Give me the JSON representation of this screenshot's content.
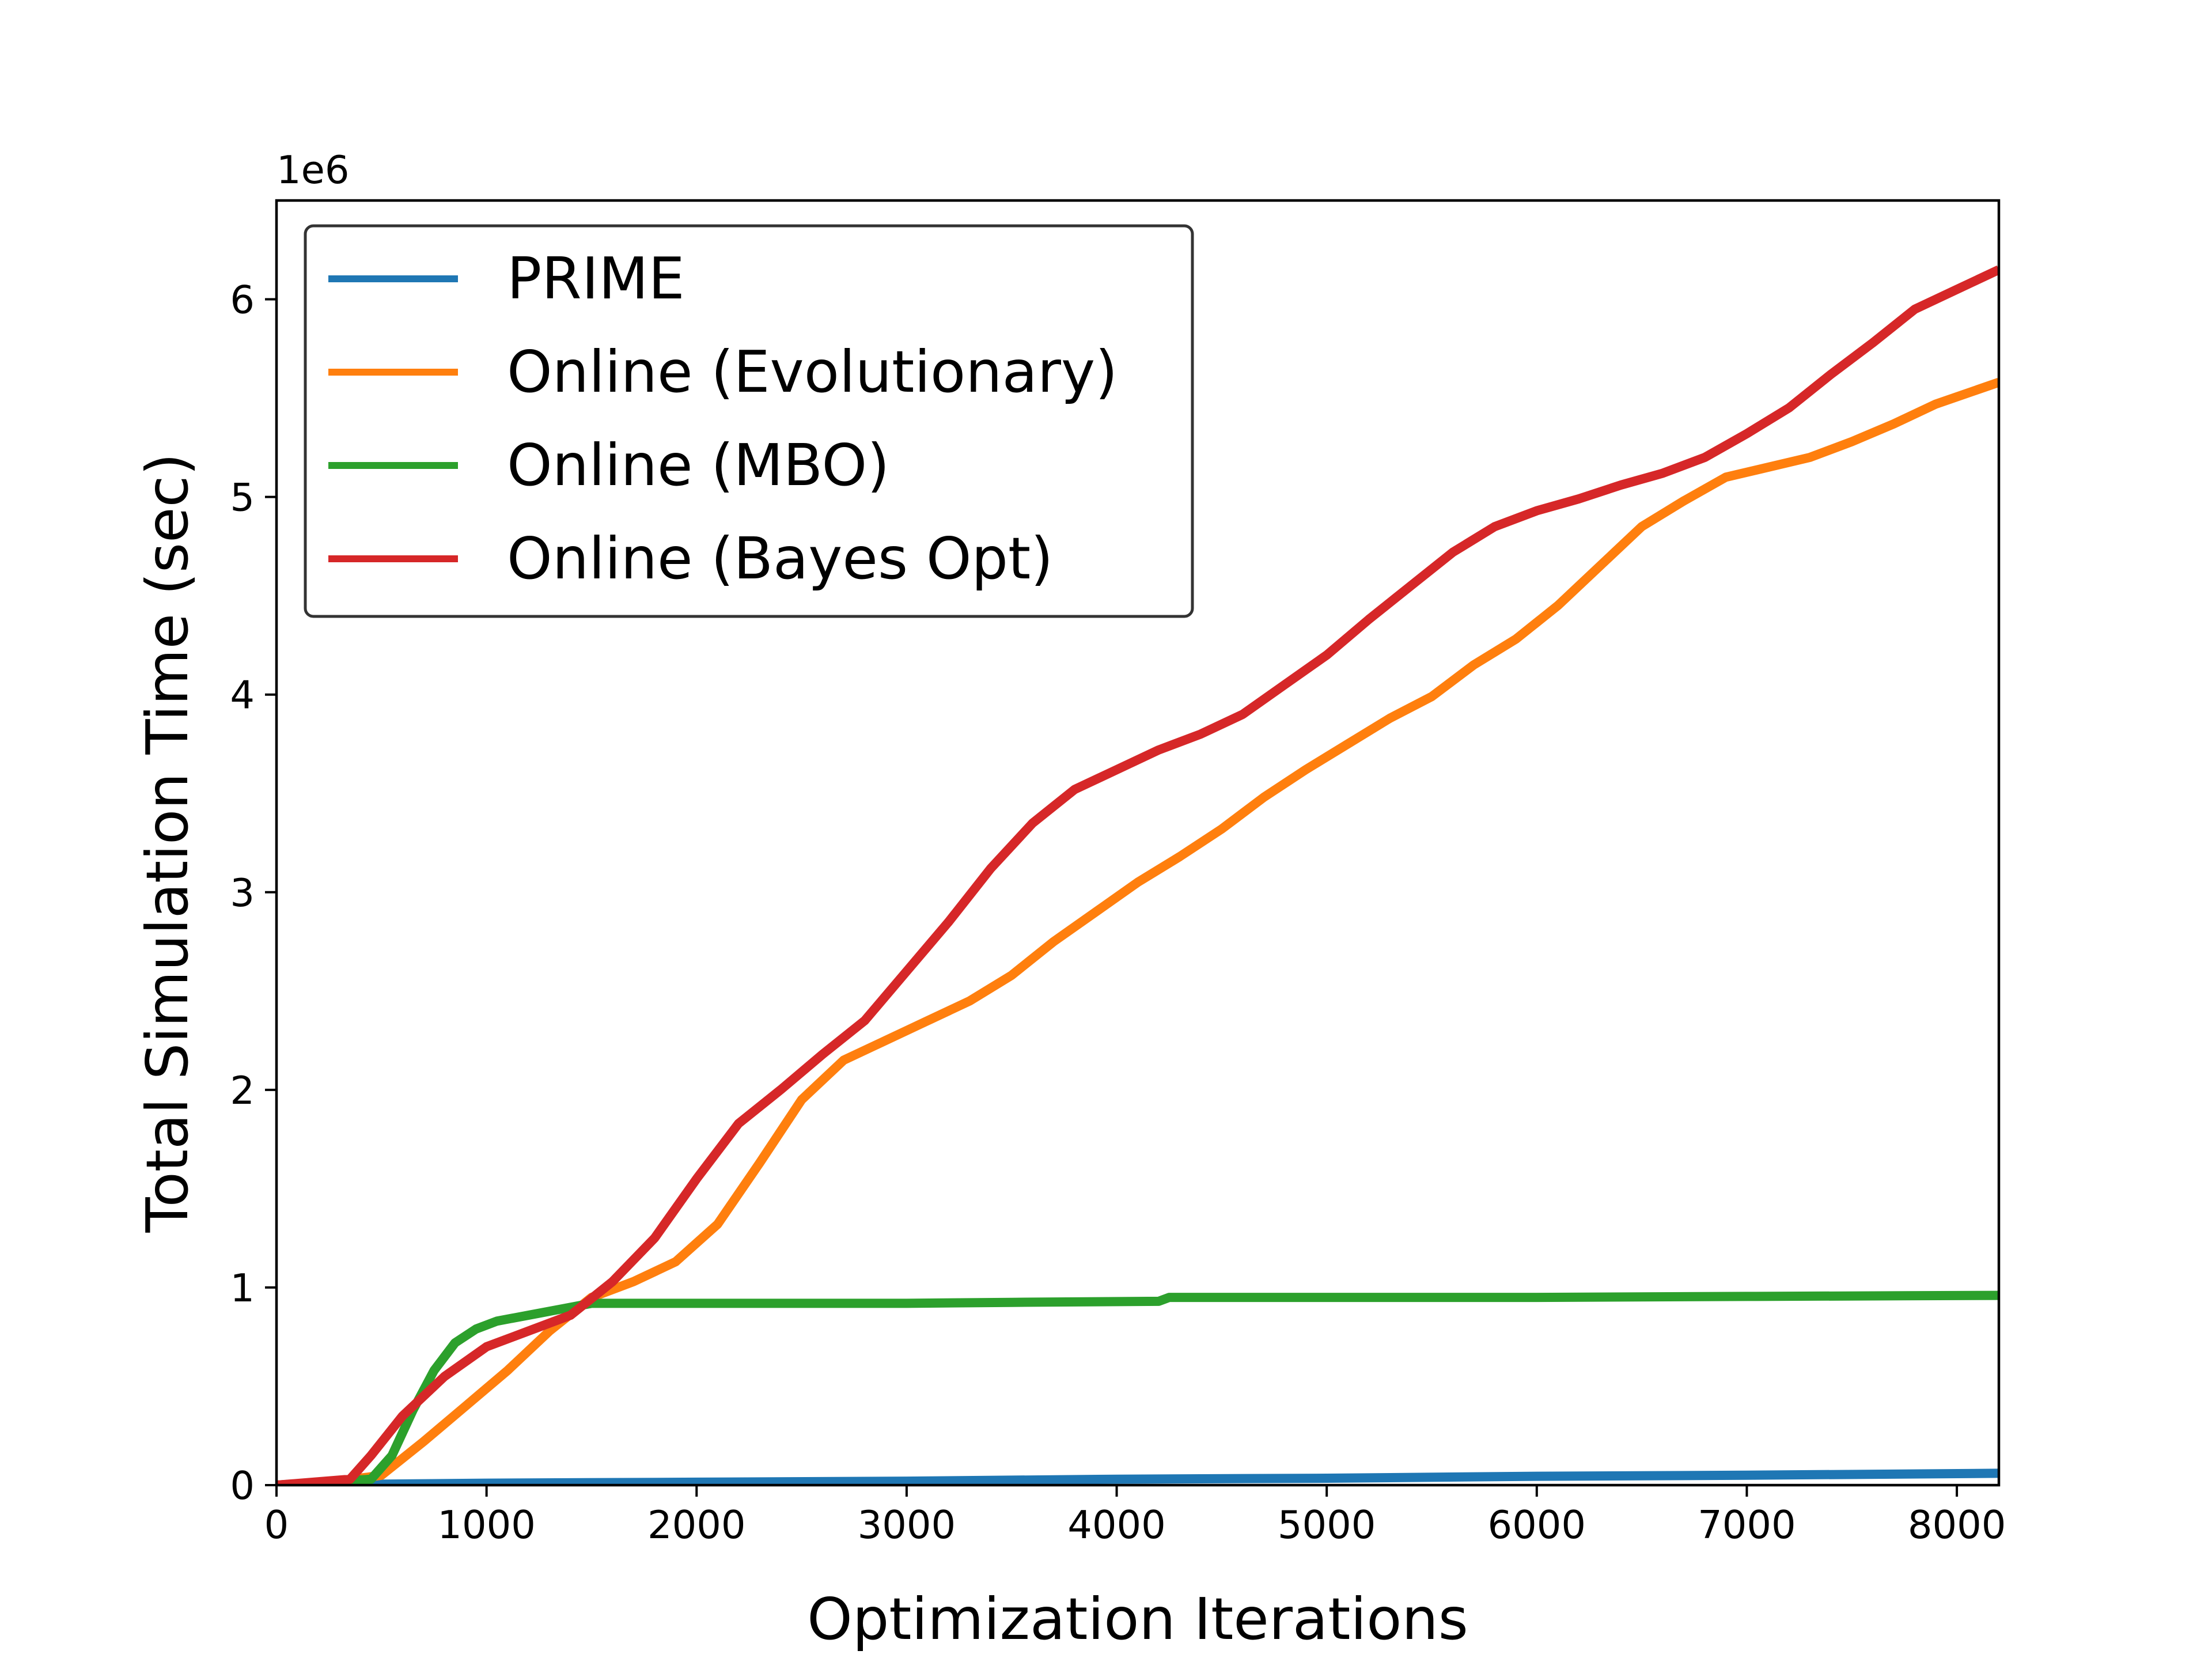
{
  "chart_data": {
    "type": "line",
    "xlabel": "Optimization Iterations",
    "ylabel": "Total Simulation Time (sec)",
    "y_offset_label": "1e6",
    "xlim": [
      0,
      8200
    ],
    "ylim": [
      0,
      6.5
    ],
    "y_multiplier": 1000000,
    "x_ticks": [
      0,
      1000,
      2000,
      3000,
      4000,
      5000,
      6000,
      7000,
      8000
    ],
    "y_ticks": [
      0,
      1,
      2,
      3,
      4,
      5,
      6
    ],
    "grid": false,
    "legend_position": "upper-left",
    "series": [
      {
        "name": "PRIME",
        "color": "#1f77b4",
        "x": [
          0,
          1000,
          2000,
          3000,
          4000,
          5000,
          6000,
          7000,
          8200
        ],
        "y": [
          0.0,
          0.01,
          0.015,
          0.02,
          0.03,
          0.035,
          0.045,
          0.05,
          0.06
        ]
      },
      {
        "name": "Online (Evolutionary)",
        "color": "#ff7f0e",
        "x": [
          0,
          300,
          500,
          700,
          900,
          1100,
          1300,
          1500,
          1700,
          1900,
          2100,
          2300,
          2500,
          2700,
          2900,
          3100,
          3300,
          3500,
          3700,
          3900,
          4100,
          4300,
          4500,
          4700,
          4900,
          5100,
          5300,
          5500,
          5700,
          5900,
          6100,
          6300,
          6500,
          6700,
          6900,
          7100,
          7300,
          7500,
          7700,
          7900,
          8200
        ],
        "y": [
          0.0,
          0.02,
          0.05,
          0.22,
          0.4,
          0.58,
          0.78,
          0.95,
          1.03,
          1.13,
          1.32,
          1.63,
          1.95,
          2.15,
          2.25,
          2.35,
          2.45,
          2.58,
          2.75,
          2.9,
          3.05,
          3.18,
          3.32,
          3.48,
          3.62,
          3.75,
          3.88,
          3.99,
          4.15,
          4.28,
          4.45,
          4.65,
          4.85,
          4.98,
          5.1,
          5.15,
          5.2,
          5.28,
          5.37,
          5.47,
          5.58
        ]
      },
      {
        "name": "Online (MBO)",
        "color": "#2ca02c",
        "x": [
          0,
          300,
          450,
          550,
          650,
          750,
          850,
          950,
          1050,
          1200,
          1350,
          1500,
          1700,
          2000,
          2500,
          3000,
          3500,
          4200,
          4250,
          5000,
          6000,
          7000,
          8200
        ],
        "y": [
          0.0,
          0.02,
          0.03,
          0.15,
          0.38,
          0.58,
          0.72,
          0.79,
          0.83,
          0.86,
          0.89,
          0.92,
          0.92,
          0.92,
          0.92,
          0.92,
          0.925,
          0.93,
          0.95,
          0.95,
          0.95,
          0.955,
          0.96
        ]
      },
      {
        "name": "Online (Bayes Opt)",
        "color": "#d62728",
        "x": [
          0,
          350,
          450,
          600,
          800,
          1000,
          1200,
          1400,
          1600,
          1800,
          2000,
          2200,
          2400,
          2600,
          2800,
          3000,
          3200,
          3400,
          3600,
          3800,
          4000,
          4200,
          4400,
          4600,
          4800,
          5000,
          5200,
          5400,
          5600,
          5800,
          6000,
          6200,
          6400,
          6600,
          6800,
          7000,
          7200,
          7400,
          7600,
          7800,
          8000,
          8200
        ],
        "y": [
          0.0,
          0.03,
          0.15,
          0.35,
          0.55,
          0.7,
          0.78,
          0.86,
          1.03,
          1.25,
          1.55,
          1.83,
          2.0,
          2.18,
          2.35,
          2.6,
          2.85,
          3.12,
          3.35,
          3.52,
          3.62,
          3.72,
          3.8,
          3.9,
          4.05,
          4.2,
          4.38,
          4.55,
          4.72,
          4.85,
          4.93,
          4.99,
          5.06,
          5.12,
          5.2,
          5.32,
          5.45,
          5.62,
          5.78,
          5.95,
          6.05,
          6.15
        ]
      }
    ]
  }
}
